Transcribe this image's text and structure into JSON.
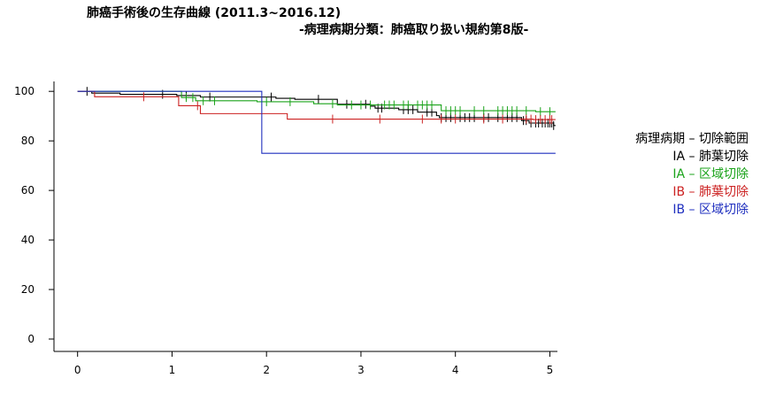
{
  "chart_data": {
    "type": "line",
    "title": "肺癌手術後の生存曲線 (2011.3~2016.12)",
    "subtitle": "-病理病期分類：肺癌取り扱い規約第8版-",
    "xlabel": "",
    "ylabel": "",
    "xlim": [
      -0.25,
      5.08
    ],
    "ylim": [
      -5,
      104
    ],
    "x_ticks": [
      0,
      1,
      2,
      3,
      4,
      5
    ],
    "y_ticks": [
      0,
      20,
      40,
      60,
      80,
      100
    ],
    "grid": false,
    "legend_placement": "right",
    "legend_title": "病理病期 – 切除範囲",
    "series": [
      {
        "name": "IA – 肺葉切除",
        "color": "#000000",
        "steps": [
          [
            0,
            100
          ],
          [
            0.15,
            99.3
          ],
          [
            0.45,
            98.8
          ],
          [
            1.05,
            98.3
          ],
          [
            1.3,
            97.7
          ],
          [
            2.1,
            97.2
          ],
          [
            2.3,
            96.8
          ],
          [
            2.75,
            94.8
          ],
          [
            3.1,
            94.0
          ],
          [
            3.15,
            93.2
          ],
          [
            3.4,
            92.6
          ],
          [
            3.6,
            91.6
          ],
          [
            3.8,
            90.2
          ],
          [
            3.83,
            89.4
          ],
          [
            4.7,
            88.2
          ],
          [
            4.78,
            87.2
          ],
          [
            5.04,
            86.2
          ]
        ],
        "end": 5.06,
        "censor": [
          0.1,
          0.9,
          1.15,
          1.4,
          2.05,
          2.55,
          2.85,
          3.05,
          3.18,
          3.22,
          3.45,
          3.5,
          3.55,
          3.7,
          3.75,
          3.85,
          3.9,
          3.95,
          4.05,
          4.1,
          4.15,
          4.2,
          4.3,
          4.35,
          4.45,
          4.55,
          4.6,
          4.65,
          4.72,
          4.75,
          4.8,
          4.85,
          4.88,
          4.92,
          4.95,
          4.98,
          5.0,
          5.02,
          5.04
        ]
      },
      {
        "name": "IA – 区域切除",
        "color": "#1aa31a",
        "steps": [
          [
            0,
            100
          ],
          [
            1.1,
            97.5
          ],
          [
            1.25,
            96.2
          ],
          [
            1.9,
            95.8
          ],
          [
            2.5,
            95.0
          ],
          [
            2.75,
            94.5
          ],
          [
            3.85,
            92.2
          ],
          [
            4.85,
            91.8
          ]
        ],
        "end": 5.06,
        "censor": [
          1.15,
          1.22,
          1.33,
          1.45,
          2.0,
          2.25,
          2.7,
          2.9,
          3.0,
          3.1,
          3.25,
          3.3,
          3.35,
          3.45,
          3.5,
          3.6,
          3.65,
          3.7,
          3.75,
          3.9,
          3.95,
          4.0,
          4.05,
          4.2,
          4.3,
          4.45,
          4.5,
          4.55,
          4.6,
          4.65,
          4.75,
          4.9,
          5.0
        ]
      },
      {
        "name": "IB – 肺葉切除",
        "color": "#cc2222",
        "steps": [
          [
            0,
            100
          ],
          [
            0.18,
            97.8
          ],
          [
            1.07,
            94.2
          ],
          [
            1.3,
            91.0
          ],
          [
            2.22,
            88.8
          ],
          [
            4.82,
            88.6
          ]
        ],
        "end": 5.06,
        "censor": [
          0.7,
          1.27,
          2.7,
          3.2,
          3.65,
          3.85,
          4.0,
          4.3,
          4.5,
          4.75,
          4.8,
          4.85,
          4.9,
          4.95,
          5.0,
          5.02
        ]
      },
      {
        "name": "IB – 区域切除",
        "color": "#1f2fbf",
        "steps": [
          [
            0,
            100
          ],
          [
            1.95,
            75.0
          ]
        ],
        "end": 5.06,
        "censor": []
      }
    ]
  }
}
